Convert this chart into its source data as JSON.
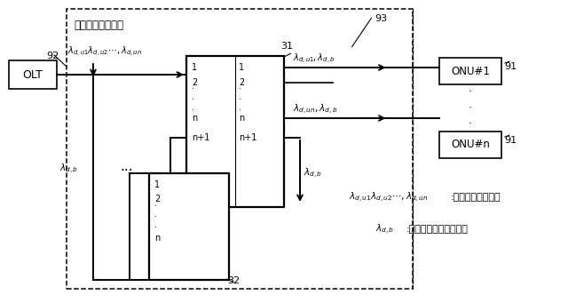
{
  "title_box": "波長分離多重装置",
  "label_93": "93",
  "label_92": "92",
  "label_91a": "91",
  "label_91b": "91",
  "label_31": "31",
  "label_32": "32",
  "olt_text": "OLT",
  "onu1_text": "ONU#1",
  "onun_text": "ONU#n",
  "lambda_input": "$\\lambda_{d,u1}\\lambda_{d,u2}\\cdots,\\lambda_{d,un}$",
  "lambda_out1": "$\\lambda_{d,u1},\\lambda_{d,b}$",
  "lambda_outn": "$\\lambda_{d,un},\\lambda_{d,b}$",
  "lambda_down": "$\\lambda_{d,b}$",
  "lambda_left": "$\\lambda_{d,b}$",
  "legend1_math": "$\\lambda_{d,u1}\\lambda_{d,u2}\\cdots,\\lambda_{d,un}$",
  "legend1_text": ":ユニキャスト波長",
  "legend2_math": "$\\lambda_{d,b}$",
  "legend2_text": ":ブロードキャスト波長",
  "dots3": "・\n・\n・",
  "dots_h": "・ ・ ・",
  "bg_color": "#ffffff"
}
